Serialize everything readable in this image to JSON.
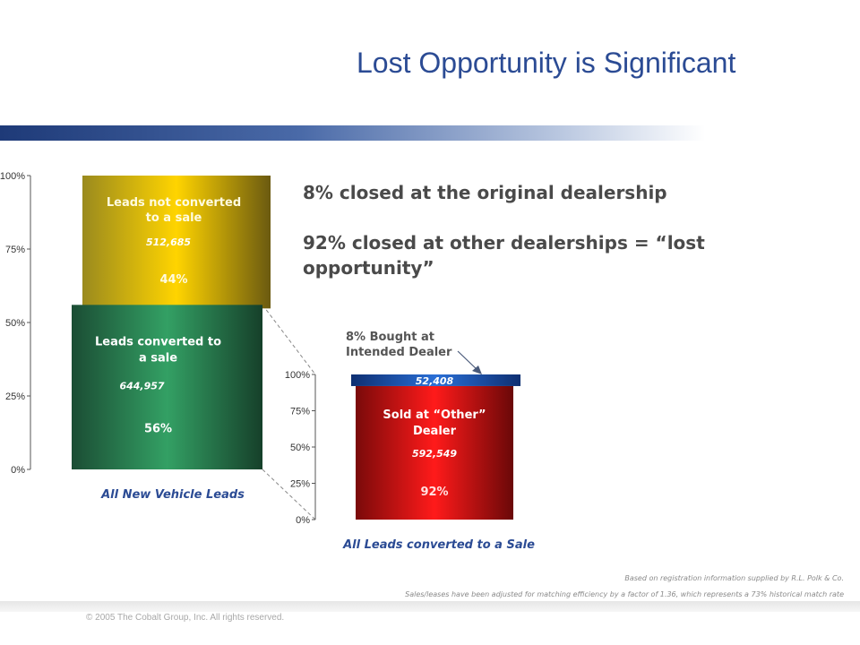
{
  "title": "Lost Opportunity is Significant",
  "headline_1": "8% closed at the original dealership",
  "headline_2": "92% closed at other dealerships = “lost opportunity”",
  "colors": {
    "title": "#2b4b94",
    "gold": "#d4a800",
    "green": "#2a8a52",
    "red": "#cc1111",
    "blue": "#1a55b8"
  },
  "chart_data": [
    {
      "type": "bar",
      "stacked": true,
      "xlabel": "All New Vehicle Leads",
      "yticks": [
        "0%",
        "25%",
        "50%",
        "75%",
        "100%"
      ],
      "ylim": [
        0,
        100
      ],
      "series": [
        {
          "label": "Leads converted to a sale",
          "count": "644,957",
          "value": 56,
          "value_label": "56%"
        },
        {
          "label": "Leads not converted to a sale",
          "count": "512,685",
          "value": 44,
          "value_label": "44%"
        }
      ]
    },
    {
      "type": "bar",
      "stacked": true,
      "xlabel": "All Leads converted to a Sale",
      "yticks": [
        "0%",
        "25%",
        "50%",
        "75%",
        "100%"
      ],
      "ylim": [
        0,
        100
      ],
      "series": [
        {
          "label": "Sold at “Other” Dealer",
          "count": "592,549",
          "value": 92,
          "value_label": "92%"
        },
        {
          "label": "",
          "count": "52,408",
          "value": 8,
          "value_label": ""
        }
      ],
      "annotation": "8% Bought at Intended Dealer"
    }
  ],
  "footnotes": [
    "Based on registration information supplied by R.L. Polk & Co.",
    "Sales/leases have been adjusted for matching efficiency by a factor of 1.36, which represents a 73% historical match rate"
  ],
  "copyright": "© 2005 The Cobalt Group, Inc. All rights reserved."
}
